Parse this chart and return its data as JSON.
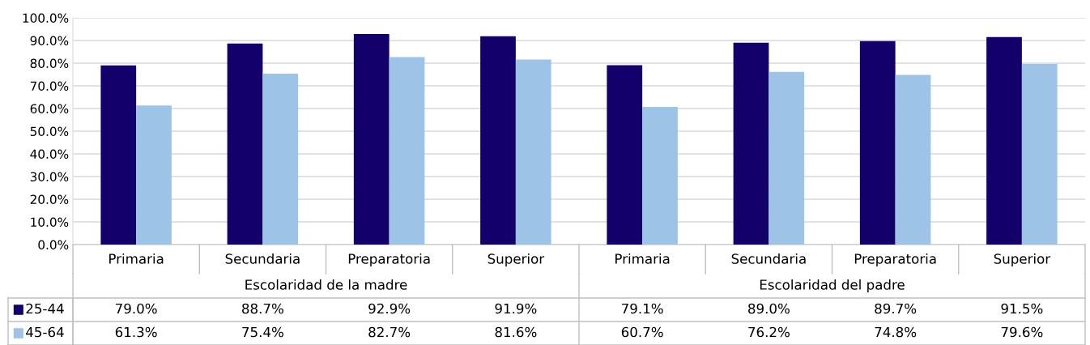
{
  "chart_data": {
    "type": "bar",
    "categories": [
      "Primaria",
      "Secundaria",
      "Preparatoria",
      "Superior",
      "Primaria",
      "Secundaria",
      "Preparatoria",
      "Superior"
    ],
    "series": [
      {
        "name": "25-44",
        "color": "#13006b",
        "values": [
          79.0,
          88.7,
          92.9,
          91.9,
          79.1,
          89.0,
          89.7,
          91.5
        ],
        "value_labels": [
          "79.0%",
          "88.7%",
          "92.9%",
          "91.9%",
          "79.1%",
          "89.0%",
          "89.7%",
          "91.5%"
        ]
      },
      {
        "name": "45-64",
        "color": "#9dc3e6",
        "values": [
          61.3,
          75.4,
          82.7,
          81.6,
          60.7,
          76.2,
          74.8,
          79.6
        ],
        "value_labels": [
          "61.3%",
          "75.4%",
          "82.7%",
          "81.6%",
          "60.7%",
          "76.2%",
          "74.8%",
          "79.6%"
        ]
      }
    ],
    "annotations": [
      "Escolaridad de la madre",
      "Escolaridad del padre"
    ],
    "ylim": [
      0,
      100
    ],
    "yticks": [
      {
        "value": 0,
        "label": "0.0%"
      },
      {
        "value": 10,
        "label": "10.0%"
      },
      {
        "value": 20,
        "label": "20.0%"
      },
      {
        "value": 30,
        "label": "30.0%"
      },
      {
        "value": 40,
        "label": "40.0%"
      },
      {
        "value": 50,
        "label": "50.0%"
      },
      {
        "value": 60,
        "label": "60.0%"
      },
      {
        "value": 70,
        "label": "70.0%"
      },
      {
        "value": 80,
        "label": "80.0%"
      },
      {
        "value": 90,
        "label": "90.0%"
      },
      {
        "value": 100,
        "label": "100.0%"
      }
    ],
    "grid": "y",
    "legend": "bottom"
  }
}
